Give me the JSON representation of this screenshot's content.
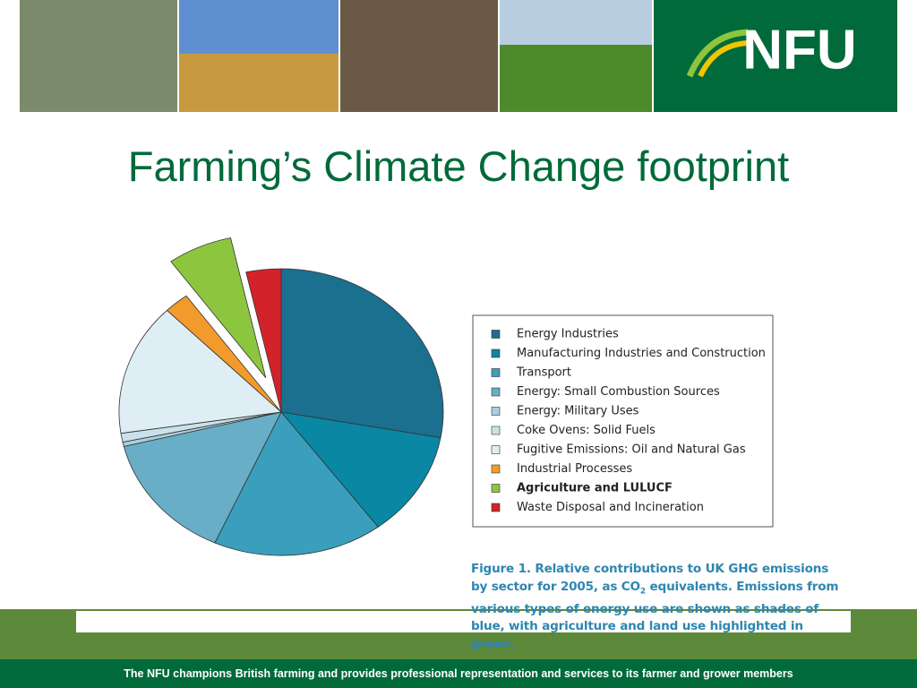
{
  "header": {
    "logo": "NFU"
  },
  "chart_data": {
    "type": "pie",
    "title": "Farming’s Climate Change footprint",
    "categories": [
      "Energy Industries",
      "Manufacturing Industries and Construction",
      "Transport",
      "Energy: Small Combustion Sources",
      "Energy: Military Uses",
      "Coke Ovens: Solid Fuels",
      "Fugitive Emissions: Oil and Natural Gas",
      "Industrial Processes",
      "Agriculture and LULUCF",
      "Waste Disposal and Incineration"
    ],
    "values": [
      28,
      12,
      17,
      14.5,
      0.5,
      1,
      15,
      2.5,
      6.5,
      3.5
    ],
    "colors": [
      "#1b6f8f",
      "#0a87a2",
      "#3a9fbc",
      "#68aec6",
      "#a7cfdd",
      "#c9e1ea",
      "#deeef4",
      "#f39a2c",
      "#8cc63f",
      "#d2232a"
    ],
    "exploded": "Agriculture and LULUCF",
    "highlighted": "Agriculture and LULUCF",
    "caption": {
      "before": "Figure 1.  Relative contributions to UK GHG emissions by sector for 2005, as CO",
      "subscript": "2",
      "after": " equivalents.  Emissions from various types of energy use are shown as shades of blue, with agriculture and land use highlighted in green."
    }
  },
  "footer": "The NFU champions British farming and provides professional representation and services to its farmer and grower members"
}
